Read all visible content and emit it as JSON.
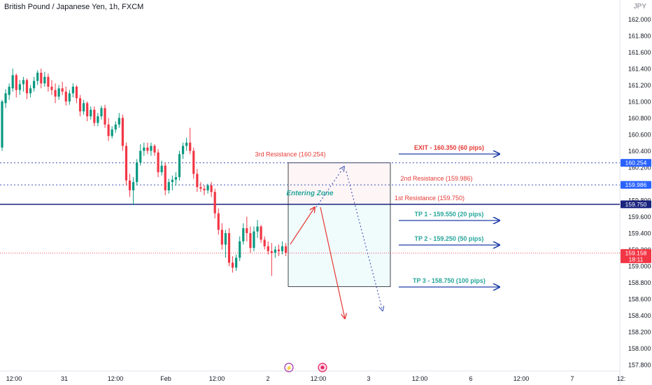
{
  "chart_data": {
    "type": "candlestick",
    "title": "British Pound / Japanese Yen, 1h, FXCM",
    "currency": "JPY",
    "ylim": [
      157.7,
      162.2
    ],
    "y_ticks": [
      "162.000",
      "161.800",
      "161.600",
      "161.400",
      "161.200",
      "161.000",
      "160.800",
      "160.600",
      "160.400",
      "160.200",
      "159.800",
      "159.600",
      "159.400",
      "159.200",
      "159.000",
      "158.800",
      "158.600",
      "158.400",
      "158.200",
      "158.000",
      "157.800"
    ],
    "x_ticks": [
      "12:00",
      "31",
      "12:00",
      "Feb",
      "12:00",
      "2",
      "12:00",
      "3",
      "12:00",
      "6",
      "12:00",
      "7",
      "12:"
    ],
    "price_badges": [
      {
        "label": "160.254",
        "value": 160.254,
        "color": "#2962ff"
      },
      {
        "label": "159.986",
        "value": 159.986,
        "color": "#2962ff"
      },
      {
        "label": "159.750",
        "value": 159.75,
        "color": "#1a237e"
      },
      {
        "label": "159.158",
        "value": 159.158,
        "color": "#f23645",
        "sub": "18:11"
      }
    ],
    "levels": [
      {
        "label": "3rd Resistance (160.254)",
        "value": 160.254,
        "style": "dotted",
        "color": "#3f51b5"
      },
      {
        "label": "2nd Resistance (159.986)",
        "value": 159.986,
        "style": "dotted",
        "color": "#3f51b5"
      },
      {
        "label": "1st Resistance (159.750)",
        "value": 159.75,
        "style": "solid",
        "color": "#1a237e"
      }
    ],
    "targets": [
      {
        "label": "EXIT - 160.350 (60 pips)",
        "value": 160.35,
        "color": "#e53935"
      },
      {
        "label": "TP 1 - 159.550 (20 pips)",
        "value": 159.55,
        "color": "#26a69a"
      },
      {
        "label": "TP 2 - 159.250 (50 pips)",
        "value": 159.25,
        "color": "#26a69a"
      },
      {
        "label": "TP 3 - 158.750 (100 pips)",
        "value": 158.75,
        "color": "#26a69a"
      }
    ],
    "zone_label": "Entering Zone",
    "current_price": 159.158,
    "colors": {
      "up": "#089981",
      "down": "#f23645"
    },
    "candles": [
      {
        "o": 160.44,
        "h": 161.02,
        "l": 160.4,
        "c": 161.0
      },
      {
        "o": 160.98,
        "h": 161.15,
        "l": 160.92,
        "c": 161.1
      },
      {
        "o": 161.08,
        "h": 161.22,
        "l": 161.02,
        "c": 161.18
      },
      {
        "o": 161.16,
        "h": 161.4,
        "l": 161.12,
        "c": 161.32
      },
      {
        "o": 161.32,
        "h": 161.34,
        "l": 161.05,
        "c": 161.14
      },
      {
        "o": 161.14,
        "h": 161.26,
        "l": 161.08,
        "c": 161.21
      },
      {
        "o": 161.21,
        "h": 161.3,
        "l": 161.12,
        "c": 161.26
      },
      {
        "o": 161.26,
        "h": 161.28,
        "l": 161.03,
        "c": 161.1
      },
      {
        "o": 161.1,
        "h": 161.2,
        "l": 161.05,
        "c": 161.16
      },
      {
        "o": 161.16,
        "h": 161.3,
        "l": 161.12,
        "c": 161.25
      },
      {
        "o": 161.25,
        "h": 161.38,
        "l": 161.2,
        "c": 161.35
      },
      {
        "o": 161.35,
        "h": 161.4,
        "l": 161.16,
        "c": 161.22
      },
      {
        "o": 161.22,
        "h": 161.36,
        "l": 161.18,
        "c": 161.3
      },
      {
        "o": 161.3,
        "h": 161.34,
        "l": 161.12,
        "c": 161.18
      },
      {
        "o": 161.18,
        "h": 161.26,
        "l": 161.08,
        "c": 161.14
      },
      {
        "o": 161.14,
        "h": 161.22,
        "l": 160.98,
        "c": 161.06
      },
      {
        "o": 161.06,
        "h": 161.2,
        "l": 161.02,
        "c": 161.16
      },
      {
        "o": 161.16,
        "h": 161.24,
        "l": 161.08,
        "c": 161.12
      },
      {
        "o": 161.12,
        "h": 161.18,
        "l": 160.95,
        "c": 161.0
      },
      {
        "o": 161.0,
        "h": 161.14,
        "l": 160.96,
        "c": 161.1
      },
      {
        "o": 161.1,
        "h": 161.22,
        "l": 161.05,
        "c": 161.18
      },
      {
        "o": 161.18,
        "h": 161.2,
        "l": 160.98,
        "c": 161.04
      },
      {
        "o": 161.04,
        "h": 161.08,
        "l": 160.82,
        "c": 160.88
      },
      {
        "o": 160.88,
        "h": 161.02,
        "l": 160.84,
        "c": 160.98
      },
      {
        "o": 160.98,
        "h": 161.0,
        "l": 160.76,
        "c": 160.82
      },
      {
        "o": 160.82,
        "h": 160.94,
        "l": 160.78,
        "c": 160.9
      },
      {
        "o": 160.9,
        "h": 160.94,
        "l": 160.7,
        "c": 160.74
      },
      {
        "o": 160.74,
        "h": 160.86,
        "l": 160.7,
        "c": 160.82
      },
      {
        "o": 160.82,
        "h": 160.95,
        "l": 160.78,
        "c": 160.92
      },
      {
        "o": 160.92,
        "h": 160.96,
        "l": 160.68,
        "c": 160.72
      },
      {
        "o": 160.72,
        "h": 160.8,
        "l": 160.52,
        "c": 160.58
      },
      {
        "o": 160.58,
        "h": 160.7,
        "l": 160.55,
        "c": 160.66
      },
      {
        "o": 160.66,
        "h": 160.76,
        "l": 160.62,
        "c": 160.72
      },
      {
        "o": 160.72,
        "h": 160.86,
        "l": 160.68,
        "c": 160.8
      },
      {
        "o": 160.8,
        "h": 160.84,
        "l": 160.4,
        "c": 160.46
      },
      {
        "o": 160.46,
        "h": 160.5,
        "l": 159.98,
        "c": 160.04
      },
      {
        "o": 160.04,
        "h": 160.12,
        "l": 159.84,
        "c": 159.92
      },
      {
        "o": 159.92,
        "h": 160.08,
        "l": 159.74,
        "c": 160.02
      },
      {
        "o": 160.02,
        "h": 160.3,
        "l": 159.98,
        "c": 160.26
      },
      {
        "o": 160.26,
        "h": 160.48,
        "l": 160.22,
        "c": 160.4
      },
      {
        "o": 160.4,
        "h": 160.5,
        "l": 160.34,
        "c": 160.44
      },
      {
        "o": 160.44,
        "h": 160.5,
        "l": 160.36,
        "c": 160.4
      },
      {
        "o": 160.4,
        "h": 160.5,
        "l": 160.34,
        "c": 160.46
      },
      {
        "o": 160.46,
        "h": 160.48,
        "l": 160.34,
        "c": 160.38
      },
      {
        "o": 160.38,
        "h": 160.42,
        "l": 160.08,
        "c": 160.14
      },
      {
        "o": 160.14,
        "h": 160.28,
        "l": 160.1,
        "c": 160.22
      },
      {
        "o": 160.22,
        "h": 160.26,
        "l": 159.86,
        "c": 159.92
      },
      {
        "o": 159.92,
        "h": 160.06,
        "l": 159.88,
        "c": 160.02
      },
      {
        "o": 160.02,
        "h": 160.1,
        "l": 159.92,
        "c": 160.05
      },
      {
        "o": 160.05,
        "h": 160.14,
        "l": 159.98,
        "c": 160.08
      },
      {
        "o": 160.08,
        "h": 160.4,
        "l": 160.04,
        "c": 160.36
      },
      {
        "o": 160.36,
        "h": 160.5,
        "l": 160.3,
        "c": 160.46
      },
      {
        "o": 160.46,
        "h": 160.56,
        "l": 160.4,
        "c": 160.5
      },
      {
        "o": 160.5,
        "h": 160.68,
        "l": 160.36,
        "c": 160.4
      },
      {
        "o": 160.4,
        "h": 160.44,
        "l": 160.06,
        "c": 160.12
      },
      {
        "o": 160.12,
        "h": 160.18,
        "l": 159.9,
        "c": 159.96
      },
      {
        "o": 159.96,
        "h": 160.02,
        "l": 159.9,
        "c": 159.94
      },
      {
        "o": 159.94,
        "h": 159.98,
        "l": 159.86,
        "c": 159.92
      },
      {
        "o": 159.92,
        "h": 160.0,
        "l": 159.88,
        "c": 159.98
      },
      {
        "o": 159.98,
        "h": 160.02,
        "l": 159.84,
        "c": 159.9
      },
      {
        "o": 159.9,
        "h": 159.94,
        "l": 159.58,
        "c": 159.64
      },
      {
        "o": 159.64,
        "h": 159.7,
        "l": 159.38,
        "c": 159.44
      },
      {
        "o": 159.44,
        "h": 159.52,
        "l": 159.2,
        "c": 159.26
      },
      {
        "o": 159.26,
        "h": 159.44,
        "l": 159.1,
        "c": 159.4
      },
      {
        "o": 159.4,
        "h": 159.46,
        "l": 159.0,
        "c": 159.04
      },
      {
        "o": 159.04,
        "h": 159.12,
        "l": 158.92,
        "c": 158.98
      },
      {
        "o": 158.98,
        "h": 159.14,
        "l": 158.94,
        "c": 159.1
      },
      {
        "o": 159.1,
        "h": 159.36,
        "l": 159.06,
        "c": 159.3
      },
      {
        "o": 159.3,
        "h": 159.52,
        "l": 159.26,
        "c": 159.46
      },
      {
        "o": 159.46,
        "h": 159.6,
        "l": 159.3,
        "c": 159.4
      },
      {
        "o": 159.4,
        "h": 159.48,
        "l": 159.16,
        "c": 159.22
      },
      {
        "o": 159.22,
        "h": 159.48,
        "l": 159.18,
        "c": 159.42
      },
      {
        "o": 159.42,
        "h": 159.56,
        "l": 159.34,
        "c": 159.48
      },
      {
        "o": 159.48,
        "h": 159.5,
        "l": 159.28,
        "c": 159.32
      },
      {
        "o": 159.32,
        "h": 159.36,
        "l": 159.2,
        "c": 159.24
      },
      {
        "o": 159.24,
        "h": 159.3,
        "l": 159.14,
        "c": 159.18
      },
      {
        "o": 159.18,
        "h": 159.28,
        "l": 158.88,
        "c": 159.16
      },
      {
        "o": 159.16,
        "h": 159.24,
        "l": 159.1,
        "c": 159.2
      },
      {
        "o": 159.2,
        "h": 159.26,
        "l": 159.12,
        "c": 159.18
      },
      {
        "o": 159.18,
        "h": 159.3,
        "l": 159.14,
        "c": 159.24
      },
      {
        "o": 159.24,
        "h": 159.28,
        "l": 159.12,
        "c": 159.16
      }
    ]
  }
}
